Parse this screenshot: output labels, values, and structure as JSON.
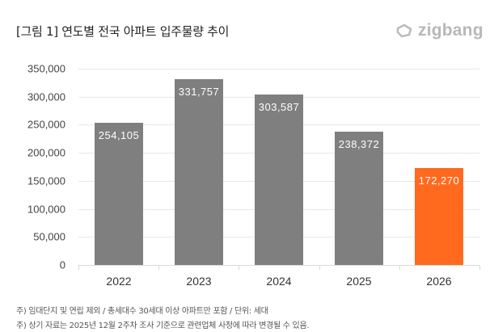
{
  "header": {
    "title": "[그림 1] 연도별 전국 아파트 입주물량 추이",
    "logo_text": "zigbang",
    "logo_icon": "zigbang-logo-icon"
  },
  "chart_data": {
    "type": "bar",
    "title": "[그림 1] 연도별 전국 아파트 입주물량 추이",
    "categories": [
      "2022",
      "2023",
      "2024",
      "2025",
      "2026"
    ],
    "values": [
      254105,
      331757,
      303587,
      238372,
      172270
    ],
    "value_labels": [
      "254,105",
      "331,757",
      "303,587",
      "238,372",
      "172,270"
    ],
    "colors": [
      "#7f7f7f",
      "#7f7f7f",
      "#7f7f7f",
      "#7f7f7f",
      "#ff6a1f"
    ],
    "xlabel": "",
    "ylabel": "",
    "ylim": [
      0,
      350000
    ],
    "yticks": [
      "0",
      "50,000",
      "100,000",
      "150,000",
      "200,000",
      "250,000",
      "300,000",
      "350,000"
    ],
    "grid": true,
    "legend": "none"
  },
  "notes": [
    "주) 임대단지 및 연립 제외 / 총세대수 30세대 이상 아파트만 포함 / 단위: 세대",
    "주) 상기 자료는 2025년 12월 2주차 조사 기준으로 관련업체 사정에 따라 변경될 수 있음."
  ]
}
